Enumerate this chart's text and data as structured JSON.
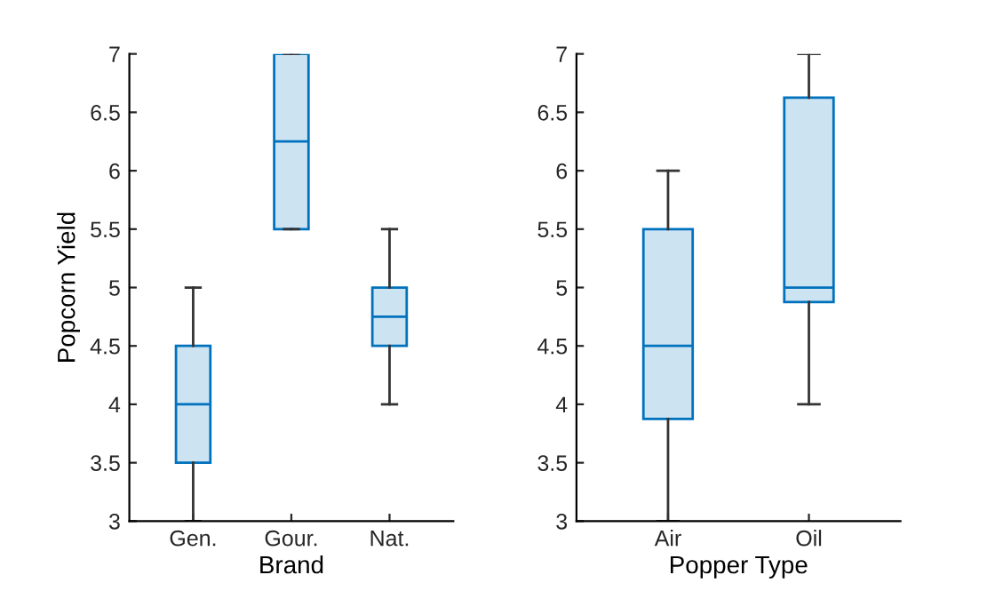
{
  "chart_data": [
    {
      "type": "box",
      "categories": [
        "Gen.",
        "Gour.",
        "Nat."
      ],
      "xlabel": "Brand",
      "ylabel": "Popcorn Yield",
      "color": "#0072bd",
      "ylim": [
        3,
        7
      ],
      "yticks": [
        3,
        3.5,
        4,
        4.5,
        5,
        5.5,
        6,
        6.5,
        7
      ],
      "grid": false,
      "boxes": [
        {
          "low": 3,
          "q1": 3.5,
          "median": 4,
          "q3": 4.5,
          "high": 5
        },
        {
          "low": 5.5,
          "q1": 5.5,
          "median": 6.25,
          "q3": 7,
          "high": 7
        },
        {
          "low": 4,
          "q1": 4.5,
          "median": 4.75,
          "q3": 5,
          "high": 5.5
        }
      ]
    },
    {
      "type": "box",
      "categories": [
        "Air",
        "Oil"
      ],
      "xlabel": "Popper Type",
      "color": "#0072bd",
      "ylim": [
        3,
        7
      ],
      "yticks": [
        3,
        3.5,
        4,
        4.5,
        5,
        5.5,
        6,
        6.5,
        7
      ],
      "grid": false,
      "boxes": [
        {
          "low": 3,
          "q1": 3.875,
          "median": 4.5,
          "q3": 5.5,
          "high": 6
        },
        {
          "low": 4,
          "q1": 4.875,
          "median": 5,
          "q3": 6.625,
          "high": 7
        }
      ]
    }
  ]
}
